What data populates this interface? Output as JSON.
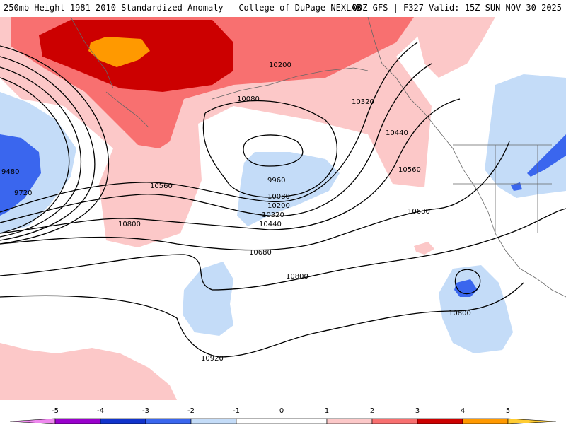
{
  "header": {
    "left_title": "250mb Height 1981-2010 Standardized Anomaly | College of DuPage NEXLAB",
    "right_title": "00Z GFS | F327 Valid: 15Z SUN NOV 30 2025"
  },
  "colors": {
    "neg5": "#ee88ee",
    "neg4": "#9900cc",
    "neg3": "#1133cc",
    "neg2": "#3a66ee",
    "neg1": "#c4dcf8",
    "zero": "#ffffff",
    "pos1": "#fcc8c8",
    "pos2": "#f87070",
    "pos3": "#cc0000",
    "pos4": "#ff9900",
    "pos5": "#ffcc33"
  },
  "contour_labels": [
    "9480",
    "9720",
    "9960",
    "10080",
    "10200",
    "10320",
    "10440",
    "10560",
    "10680",
    "10800",
    "10920"
  ],
  "colorbar": {
    "ticks": [
      "-5",
      "-4",
      "-3",
      "-2",
      "-1",
      "0",
      "1",
      "2",
      "3",
      "4",
      "5"
    ]
  }
}
